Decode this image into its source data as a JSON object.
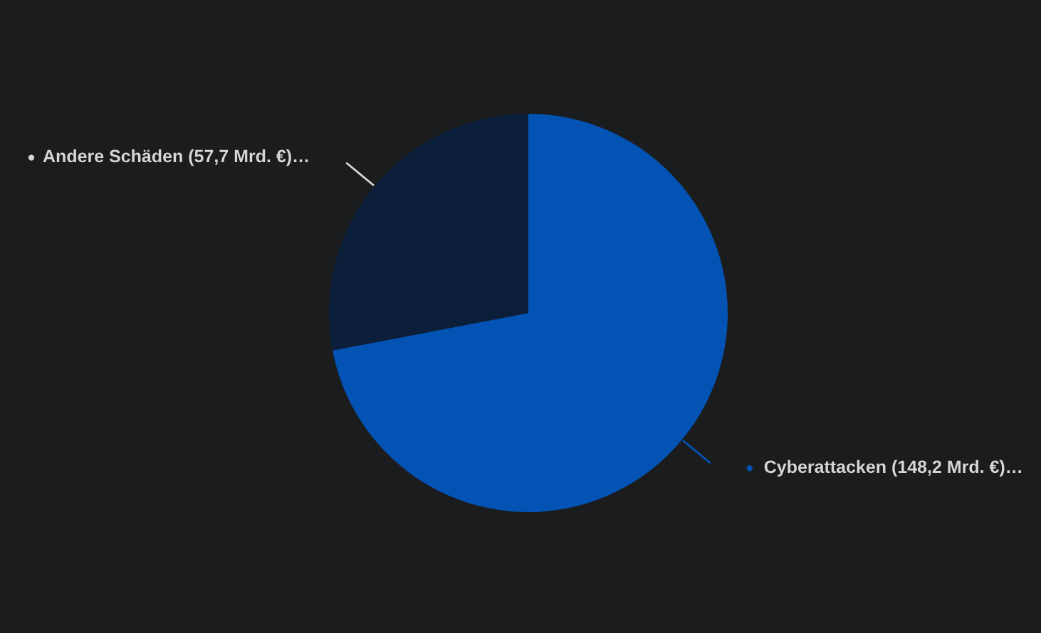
{
  "chart_data": {
    "type": "pie",
    "categories": [
      "Cyberattacken (148,2 Mrd. €)…",
      "Andere Schäden (57,7 Mrd. €)…"
    ],
    "values": [
      148.2,
      57.7
    ],
    "colors": [
      "#0353b5",
      "#0c1f3a"
    ]
  }
}
